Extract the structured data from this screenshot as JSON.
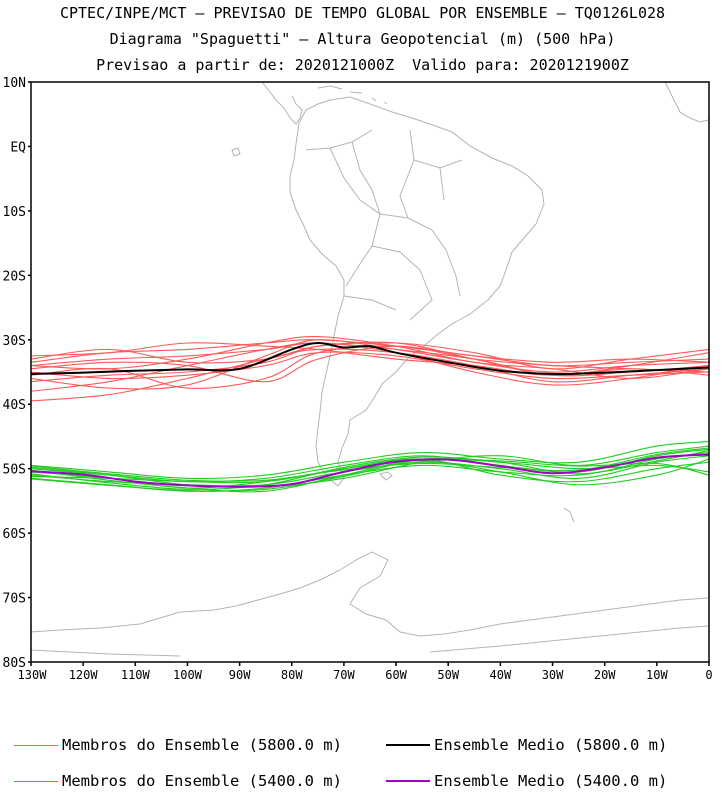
{
  "titles": {
    "line1": "CPTEC/INPE/MCT – PREVISAO DE TEMPO GLOBAL POR ENSEMBLE – TQ0126L028",
    "line2": "Diagrama \"Spaguetti\" – Altura Geopotencial (m) (500 hPa)",
    "line3": "Previsao a partir de: 2020121000Z  Valido para: 2020121900Z"
  },
  "axes": {
    "lat_labels": [
      "10N",
      "EQ",
      "10S",
      "20S",
      "30S",
      "40S",
      "50S",
      "60S",
      "70S",
      "80S"
    ],
    "lon_labels": [
      "130W",
      "120W",
      "110W",
      "100W",
      "90W",
      "80W",
      "70W",
      "60W",
      "50W",
      "40W",
      "30W",
      "20W",
      "10W",
      "0"
    ]
  },
  "legend": [
    {
      "label": "Membros do Ensemble (5800.0 m)",
      "color": "#ff5a5a",
      "style": "thin"
    },
    {
      "label": "Ensemble Medio (5800.0 m)",
      "color": "#000000",
      "style": "thick"
    },
    {
      "label": "Membros do Ensemble (5400.0 m)",
      "color": "#22cc22",
      "style": "thin"
    },
    {
      "label": "Ensemble Medio (5400.0 m)",
      "color": "#a000c8",
      "style": "thick"
    }
  ],
  "colors": {
    "members_5800": "#ff5a5a",
    "mean_5800": "#000000",
    "members_5400": "#22cc22",
    "mean_5400": "#a000c8",
    "coastline": "#b4b4b4"
  },
  "chart_data": {
    "type": "line",
    "x_unit": "degrees longitude (negative = west)",
    "y_unit": "degrees latitude (negative = south)",
    "xlim": [
      -130,
      0
    ],
    "ylim": [
      -80,
      10
    ],
    "series": [
      {
        "name": "Ensemble Medio (5800.0 m)",
        "x": [
          -130,
          -120,
          -110,
          -100,
          -90,
          -80,
          -75,
          -70,
          -65,
          -60,
          -50,
          -40,
          -30,
          -20,
          -10,
          0
        ],
        "y": [
          -35.3,
          -35.1,
          -34.8,
          -34.6,
          -34.5,
          -31.5,
          -30.5,
          -31.2,
          -31.0,
          -32.0,
          -33.5,
          -34.8,
          -35.3,
          -35.1,
          -34.7,
          -34.3
        ]
      },
      {
        "name": "Ensemble Medio (5400.0 m)",
        "x": [
          -130,
          -120,
          -110,
          -100,
          -90,
          -80,
          -70,
          -60,
          -50,
          -40,
          -30,
          -20,
          -10,
          0
        ],
        "y": [
          -50.4,
          -50.9,
          -52.0,
          -52.6,
          -52.8,
          -52.4,
          -50.5,
          -48.9,
          -48.6,
          -49.6,
          -50.7,
          -49.8,
          -48.3,
          -47.8
        ]
      }
    ],
    "member_lines_5800": [
      {
        "x": [
          -130,
          -115,
          -100,
          -85,
          -75,
          -60,
          -45,
          -30,
          -15,
          0
        ],
        "y": [
          -33.5,
          -32.0,
          -31.5,
          -30.5,
          -30.0,
          -31.0,
          -32.5,
          -34.0,
          -33.5,
          -33.0
        ]
      },
      {
        "x": [
          -130,
          -115,
          -100,
          -85,
          -75,
          -60,
          -45,
          -30,
          -15,
          0
        ],
        "y": [
          -34.0,
          -33.0,
          -32.5,
          -31.5,
          -30.5,
          -31.5,
          -33.0,
          -35.5,
          -35.0,
          -34.0
        ]
      },
      {
        "x": [
          -130,
          -115,
          -100,
          -85,
          -75,
          -60,
          -45,
          -30,
          -15,
          0
        ],
        "y": [
          -39.5,
          -38.5,
          -36.0,
          -33.0,
          -31.5,
          -32.0,
          -34.0,
          -36.5,
          -35.5,
          -34.5
        ]
      },
      {
        "x": [
          -130,
          -115,
          -100,
          -85,
          -75,
          -60,
          -45,
          -30,
          -15,
          0
        ],
        "y": [
          -36.0,
          -37.5,
          -37.0,
          -32.5,
          -30.0,
          -31.5,
          -33.5,
          -35.0,
          -34.0,
          -33.5
        ]
      },
      {
        "x": [
          -130,
          -115,
          -100,
          -85,
          -75,
          -60,
          -45,
          -30,
          -15,
          0
        ],
        "y": [
          -33.0,
          -31.5,
          -33.5,
          -33.0,
          -31.0,
          -30.5,
          -32.0,
          -34.5,
          -33.0,
          -31.5
        ]
      },
      {
        "x": [
          -130,
          -115,
          -100,
          -85,
          -75,
          -60,
          -45,
          -30,
          -15,
          0
        ],
        "y": [
          -35.0,
          -36.0,
          -35.5,
          -34.0,
          -32.0,
          -32.5,
          -34.5,
          -36.0,
          -35.5,
          -35.0
        ]
      },
      {
        "x": [
          -130,
          -115,
          -100,
          -85,
          -75,
          -60,
          -45,
          -30,
          -15,
          0
        ],
        "y": [
          -34.5,
          -33.5,
          -34.0,
          -36.5,
          -33.0,
          -31.0,
          -33.0,
          -34.0,
          -34.5,
          -35.0
        ]
      },
      {
        "x": [
          -130,
          -115,
          -100,
          -85,
          -75,
          -60,
          -45,
          -30,
          -15,
          0
        ],
        "y": [
          -38.0,
          -36.5,
          -34.0,
          -31.5,
          -30.5,
          -32.0,
          -35.0,
          -37.0,
          -36.0,
          -34.0
        ]
      },
      {
        "x": [
          -130,
          -115,
          -100,
          -85,
          -75,
          -60,
          -45,
          -30,
          -15,
          0
        ],
        "y": [
          -32.5,
          -32.0,
          -30.5,
          -31.0,
          -31.5,
          -33.0,
          -34.0,
          -35.5,
          -34.0,
          -32.0
        ]
      },
      {
        "x": [
          -130,
          -115,
          -100,
          -85,
          -75,
          -60,
          -45,
          -30,
          -15,
          0
        ],
        "y": [
          -35.5,
          -34.5,
          -37.5,
          -36.0,
          -32.0,
          -31.0,
          -32.5,
          -33.5,
          -33.0,
          -33.5
        ]
      },
      {
        "x": [
          -130,
          -115,
          -100,
          -85,
          -75,
          -60,
          -45,
          -30,
          -15,
          0
        ],
        "y": [
          -36.5,
          -35.5,
          -35.0,
          -33.5,
          -31.0,
          -30.5,
          -33.0,
          -35.5,
          -34.5,
          -35.5
        ]
      },
      {
        "x": [
          -130,
          -115,
          -100,
          -85,
          -75,
          -60,
          -45,
          -30,
          -15,
          0
        ],
        "y": [
          -34.0,
          -34.5,
          -33.0,
          -30.5,
          -29.5,
          -31.0,
          -33.5,
          -34.5,
          -36.0,
          -34.5
        ]
      }
    ],
    "member_lines_5400": [
      {
        "x": [
          -130,
          -115,
          -100,
          -85,
          -70,
          -55,
          -40,
          -25,
          -10,
          0
        ],
        "y": [
          -49.5,
          -50.5,
          -51.5,
          -51.0,
          -49.0,
          -47.5,
          -48.5,
          -49.0,
          -46.5,
          -45.8
        ]
      },
      {
        "x": [
          -130,
          -115,
          -100,
          -85,
          -70,
          -55,
          -40,
          -25,
          -10,
          0
        ],
        "y": [
          -50.0,
          -51.0,
          -52.0,
          -51.5,
          -49.5,
          -48.0,
          -49.5,
          -50.5,
          -48.0,
          -47.0
        ]
      },
      {
        "x": [
          -130,
          -115,
          -100,
          -85,
          -70,
          -55,
          -40,
          -25,
          -10,
          0
        ],
        "y": [
          -51.0,
          -52.0,
          -52.5,
          -52.5,
          -50.5,
          -49.0,
          -50.0,
          -51.5,
          -49.0,
          -48.0
        ]
      },
      {
        "x": [
          -130,
          -115,
          -100,
          -85,
          -70,
          -55,
          -40,
          -25,
          -10,
          0
        ],
        "y": [
          -50.5,
          -51.5,
          -53.0,
          -52.0,
          -50.0,
          -48.5,
          -51.0,
          -52.0,
          -50.0,
          -49.0
        ]
      },
      {
        "x": [
          -130,
          -115,
          -100,
          -85,
          -70,
          -55,
          -40,
          -25,
          -10,
          0
        ],
        "y": [
          -51.5,
          -52.5,
          -53.5,
          -53.0,
          -51.0,
          -49.5,
          -50.5,
          -51.0,
          -48.5,
          -47.5
        ]
      },
      {
        "x": [
          -130,
          -115,
          -100,
          -85,
          -70,
          -55,
          -40,
          -25,
          -10,
          0
        ],
        "y": [
          -49.8,
          -51.0,
          -52.5,
          -52.8,
          -51.5,
          -49.0,
          -48.0,
          -49.5,
          -47.5,
          -46.5
        ]
      },
      {
        "x": [
          -130,
          -115,
          -100,
          -85,
          -70,
          -55,
          -40,
          -25,
          -10,
          0
        ],
        "y": [
          -50.2,
          -51.8,
          -53.0,
          -53.5,
          -51.0,
          -48.5,
          -49.0,
          -50.0,
          -49.5,
          -50.5
        ]
      },
      {
        "x": [
          -130,
          -115,
          -100,
          -85,
          -70,
          -55,
          -40,
          -25,
          -10,
          0
        ],
        "y": [
          -51.2,
          -51.5,
          -52.0,
          -52.0,
          -50.0,
          -48.8,
          -50.5,
          -52.5,
          -51.0,
          -48.5
        ]
      },
      {
        "x": [
          -130,
          -115,
          -100,
          -85,
          -70,
          -55,
          -40,
          -25,
          -10,
          0
        ],
        "y": [
          -50.8,
          -52.2,
          -53.2,
          -52.5,
          -49.8,
          -48.2,
          -49.0,
          -50.8,
          -48.8,
          -47.2
        ]
      },
      {
        "x": [
          -130,
          -115,
          -100,
          -85,
          -70,
          -55,
          -40,
          -25,
          -10,
          0
        ],
        "y": [
          -49.6,
          -50.8,
          -51.8,
          -51.8,
          -50.2,
          -49.2,
          -49.8,
          -50.2,
          -47.8,
          -46.8
        ]
      },
      {
        "x": [
          -130,
          -115,
          -100,
          -85,
          -70,
          -55,
          -40,
          -25,
          -10,
          0
        ],
        "y": [
          -51.6,
          -52.6,
          -53.4,
          -53.2,
          -51.2,
          -48.6,
          -48.8,
          -49.6,
          -49.2,
          -51.0
        ]
      }
    ]
  }
}
